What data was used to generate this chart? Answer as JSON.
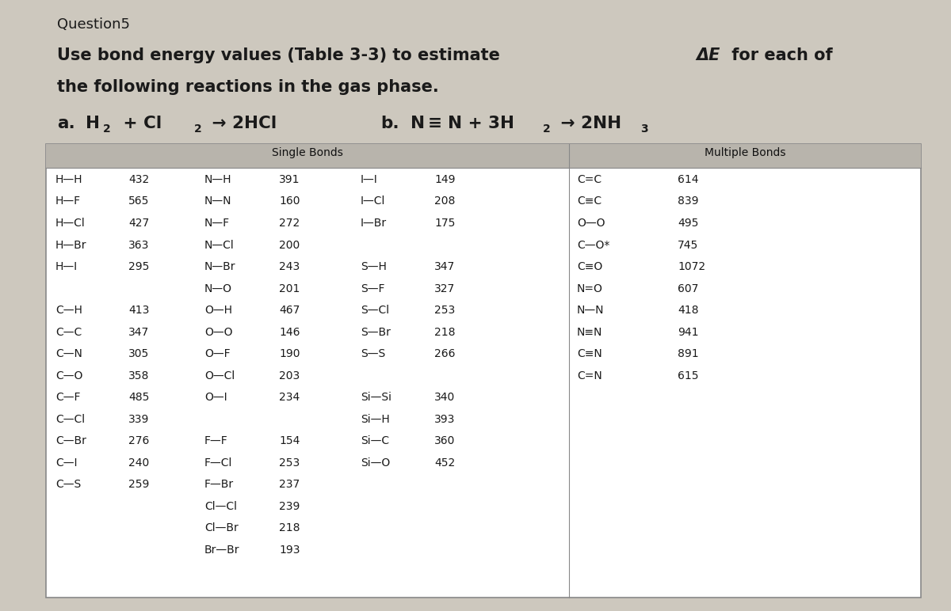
{
  "bg_color": "#cdc8be",
  "table_bg": "#ffffff",
  "header_bg": "#b8b4ac",
  "title_question": "Question5",
  "title_line1_pre": "Use bond energy values (Table 3-3) to estimate ",
  "title_line1_delta": "Δ",
  "title_line1_E": "E",
  "title_line1_post": " for each of",
  "title_line2": "the following reactions in the gas phase.",
  "table_header_single": "Single Bonds",
  "table_header_multiple": "Multiple Bonds",
  "col1_bonds": [
    "H—H",
    "H—F",
    "H—Cl",
    "H—Br",
    "H—I",
    "",
    "C—H",
    "C—C",
    "C—N",
    "C—O",
    "C—F",
    "C—Cl",
    "C—Br",
    "C—I",
    "C—S"
  ],
  "col1_values": [
    "432",
    "565",
    "427",
    "363",
    "295",
    "",
    "413",
    "347",
    "305",
    "358",
    "485",
    "339",
    "276",
    "240",
    "259"
  ],
  "col2_bonds": [
    "N—H",
    "N—N",
    "N—F",
    "N—Cl",
    "N—Br",
    "N—O",
    "O—H",
    "O—O",
    "O—F",
    "O—Cl",
    "O—I",
    "",
    "F—F",
    "F—Cl",
    "F—Br",
    "Cl—Cl",
    "Cl—Br",
    "Br—Br"
  ],
  "col2_values": [
    "391",
    "160",
    "272",
    "200",
    "243",
    "201",
    "467",
    "146",
    "190",
    "203",
    "234",
    "",
    "154",
    "253",
    "237",
    "239",
    "218",
    "193"
  ],
  "col3_bonds": [
    "I—I",
    "I—Cl",
    "I—Br",
    "",
    "S—H",
    "S—F",
    "S—Cl",
    "S—Br",
    "S—S",
    "",
    "Si—Si",
    "Si—H",
    "Si—C",
    "Si—O"
  ],
  "col3_values": [
    "149",
    "208",
    "175",
    "",
    "347",
    "327",
    "253",
    "218",
    "266",
    "",
    "340",
    "393",
    "360",
    "452"
  ],
  "col4_bonds": [
    "C=C",
    "C≡C",
    "O—O",
    "C—O*",
    "C≡O",
    "N=O",
    "N—N",
    "N≡N",
    "C≡N",
    "C=N"
  ],
  "col4_values": [
    "614",
    "839",
    "495",
    "745",
    "1072",
    "607",
    "418",
    "941",
    "891",
    "615"
  ],
  "figsize": [
    12.0,
    7.72
  ],
  "dpi": 100
}
